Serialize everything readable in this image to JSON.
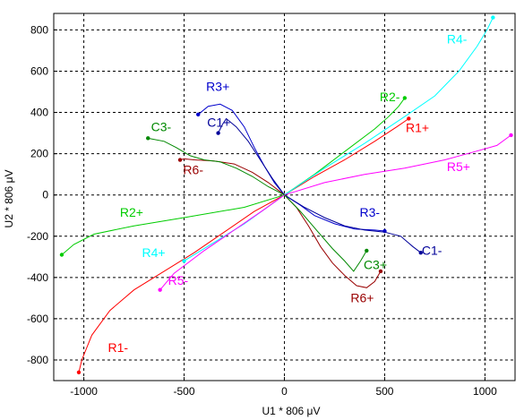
{
  "chart_data": {
    "type": "line",
    "xlabel": "U1 * 806 μV",
    "ylabel": "U2 * 806 μV",
    "xlim": [
      -1150,
      1150
    ],
    "ylim": [
      -900,
      880
    ],
    "xticks": [
      -1000,
      -500,
      0,
      500,
      1000
    ],
    "yticks": [
      -800,
      -600,
      -400,
      -200,
      0,
      200,
      400,
      600,
      800
    ],
    "xtick_labels": [
      "-1000",
      "-500",
      "0",
      "500",
      "1000"
    ],
    "ytick_labels": [
      "-800",
      "-600",
      "-400",
      "-200",
      "0",
      "200",
      "400",
      "600",
      "800"
    ],
    "grid": true,
    "series": [
      {
        "name": "R1+",
        "color": "#ff0000",
        "label_at": [
          605,
          305
        ],
        "points": [
          [
            0,
            0
          ],
          [
            150,
            90
          ],
          [
            300,
            170
          ],
          [
            450,
            260
          ],
          [
            560,
            330
          ],
          [
            620,
            370
          ]
        ]
      },
      {
        "name": "R1-",
        "color": "#ff0000",
        "label_at": [
          -880,
          -760
        ],
        "points": [
          [
            0,
            0
          ],
          [
            -150,
            -80
          ],
          [
            -300,
            -180
          ],
          [
            -450,
            -280
          ],
          [
            -600,
            -370
          ],
          [
            -750,
            -460
          ],
          [
            -870,
            -560
          ],
          [
            -960,
            -680
          ],
          [
            -1010,
            -800
          ],
          [
            -1025,
            -860
          ]
        ]
      },
      {
        "name": "R2+",
        "color": "#00cc00",
        "label_at": [
          -820,
          -105
        ],
        "points": [
          [
            0,
            0
          ],
          [
            -200,
            -60
          ],
          [
            -500,
            -110
          ],
          [
            -750,
            -150
          ],
          [
            -950,
            -190
          ],
          [
            -1050,
            -240
          ],
          [
            -1110,
            -290
          ]
        ]
      },
      {
        "name": "R2-",
        "color": "#00cc00",
        "label_at": [
          475,
          455
        ],
        "points": [
          [
            0,
            0
          ],
          [
            150,
            100
          ],
          [
            300,
            210
          ],
          [
            450,
            320
          ],
          [
            520,
            380
          ],
          [
            570,
            430
          ],
          [
            600,
            470
          ]
        ]
      },
      {
        "name": "R3+",
        "color": "#0000cc",
        "label_at": [
          -390,
          505
        ],
        "points": [
          [
            0,
            0
          ],
          [
            -50,
            60
          ],
          [
            -100,
            140
          ],
          [
            -150,
            230
          ],
          [
            -200,
            330
          ],
          [
            -260,
            410
          ],
          [
            -320,
            440
          ],
          [
            -380,
            430
          ],
          [
            -430,
            390
          ]
        ]
      },
      {
        "name": "R3-",
        "color": "#0000cc",
        "label_at": [
          375,
          -105
        ],
        "points": [
          [
            0,
            0
          ],
          [
            80,
            -50
          ],
          [
            150,
            -100
          ],
          [
            250,
            -140
          ],
          [
            350,
            -165
          ],
          [
            450,
            -170
          ],
          [
            500,
            -175
          ]
        ]
      },
      {
        "name": "R4+",
        "color": "#00ffff",
        "label_at": [
          -710,
          -300
        ],
        "points": [
          [
            0,
            0
          ],
          [
            -100,
            -70
          ],
          [
            -200,
            -140
          ],
          [
            -300,
            -200
          ],
          [
            -400,
            -260
          ],
          [
            -500,
            -320
          ]
        ]
      },
      {
        "name": "R4-",
        "color": "#00ffff",
        "label_at": [
          810,
          735
        ],
        "points": [
          [
            0,
            0
          ],
          [
            200,
            130
          ],
          [
            400,
            250
          ],
          [
            600,
            380
          ],
          [
            750,
            480
          ],
          [
            870,
            600
          ],
          [
            960,
            720
          ],
          [
            1010,
            800
          ],
          [
            1040,
            860
          ]
        ]
      },
      {
        "name": "R5+",
        "color": "#ff00ff",
        "label_at": [
          810,
          115
        ],
        "points": [
          [
            0,
            0
          ],
          [
            200,
            60
          ],
          [
            400,
            100
          ],
          [
            600,
            130
          ],
          [
            800,
            170
          ],
          [
            950,
            210
          ],
          [
            1060,
            240
          ],
          [
            1130,
            290
          ]
        ]
      },
      {
        "name": "R5-",
        "color": "#ff00ff",
        "label_at": [
          -580,
          -435
        ],
        "points": [
          [
            0,
            0
          ],
          [
            -100,
            -70
          ],
          [
            -250,
            -170
          ],
          [
            -400,
            -270
          ],
          [
            -550,
            -380
          ],
          [
            -620,
            -460
          ]
        ]
      },
      {
        "name": "R6+",
        "color": "#990000",
        "label_at": [
          330,
          -520
        ],
        "points": [
          [
            0,
            0
          ],
          [
            60,
            -60
          ],
          [
            120,
            -150
          ],
          [
            180,
            -250
          ],
          [
            240,
            -330
          ],
          [
            300,
            -390
          ],
          [
            360,
            -440
          ],
          [
            410,
            -450
          ],
          [
            450,
            -420
          ],
          [
            480,
            -370
          ]
        ]
      },
      {
        "name": "R6-",
        "color": "#990000",
        "label_at": [
          -505,
          100
        ],
        "points": [
          [
            0,
            0
          ],
          [
            -80,
            60
          ],
          [
            -160,
            110
          ],
          [
            -250,
            150
          ],
          [
            -350,
            165
          ],
          [
            -450,
            170
          ],
          [
            -500,
            175
          ],
          [
            -520,
            170
          ]
        ]
      },
      {
        "name": "C1+",
        "color": "#000099",
        "label_at": [
          -385,
          330
        ],
        "points": [
          [
            0,
            0
          ],
          [
            -60,
            80
          ],
          [
            -120,
            170
          ],
          [
            -180,
            260
          ],
          [
            -240,
            330
          ],
          [
            -290,
            370
          ],
          [
            -310,
            340
          ],
          [
            -330,
            300
          ]
        ]
      },
      {
        "name": "C1-",
        "color": "#000099",
        "label_at": [
          685,
          -290
        ],
        "points": [
          [
            0,
            0
          ],
          [
            100,
            -60
          ],
          [
            200,
            -110
          ],
          [
            300,
            -150
          ],
          [
            400,
            -170
          ],
          [
            500,
            -180
          ],
          [
            580,
            -200
          ],
          [
            640,
            -250
          ],
          [
            680,
            -280
          ]
        ]
      },
      {
        "name": "C3+",
        "color": "#008800",
        "label_at": [
          395,
          -360
        ],
        "points": [
          [
            0,
            0
          ],
          [
            80,
            -80
          ],
          [
            160,
            -170
          ],
          [
            240,
            -260
          ],
          [
            300,
            -320
          ],
          [
            345,
            -370
          ],
          [
            380,
            -320
          ],
          [
            410,
            -270
          ]
        ]
      },
      {
        "name": "C3-",
        "color": "#008800",
        "label_at": [
          -665,
          310
        ],
        "points": [
          [
            0,
            0
          ],
          [
            -80,
            40
          ],
          [
            -160,
            90
          ],
          [
            -240,
            130
          ],
          [
            -320,
            160
          ],
          [
            -400,
            170
          ],
          [
            -470,
            190
          ],
          [
            -540,
            230
          ],
          [
            -600,
            260
          ],
          [
            -680,
            275
          ]
        ]
      }
    ]
  }
}
